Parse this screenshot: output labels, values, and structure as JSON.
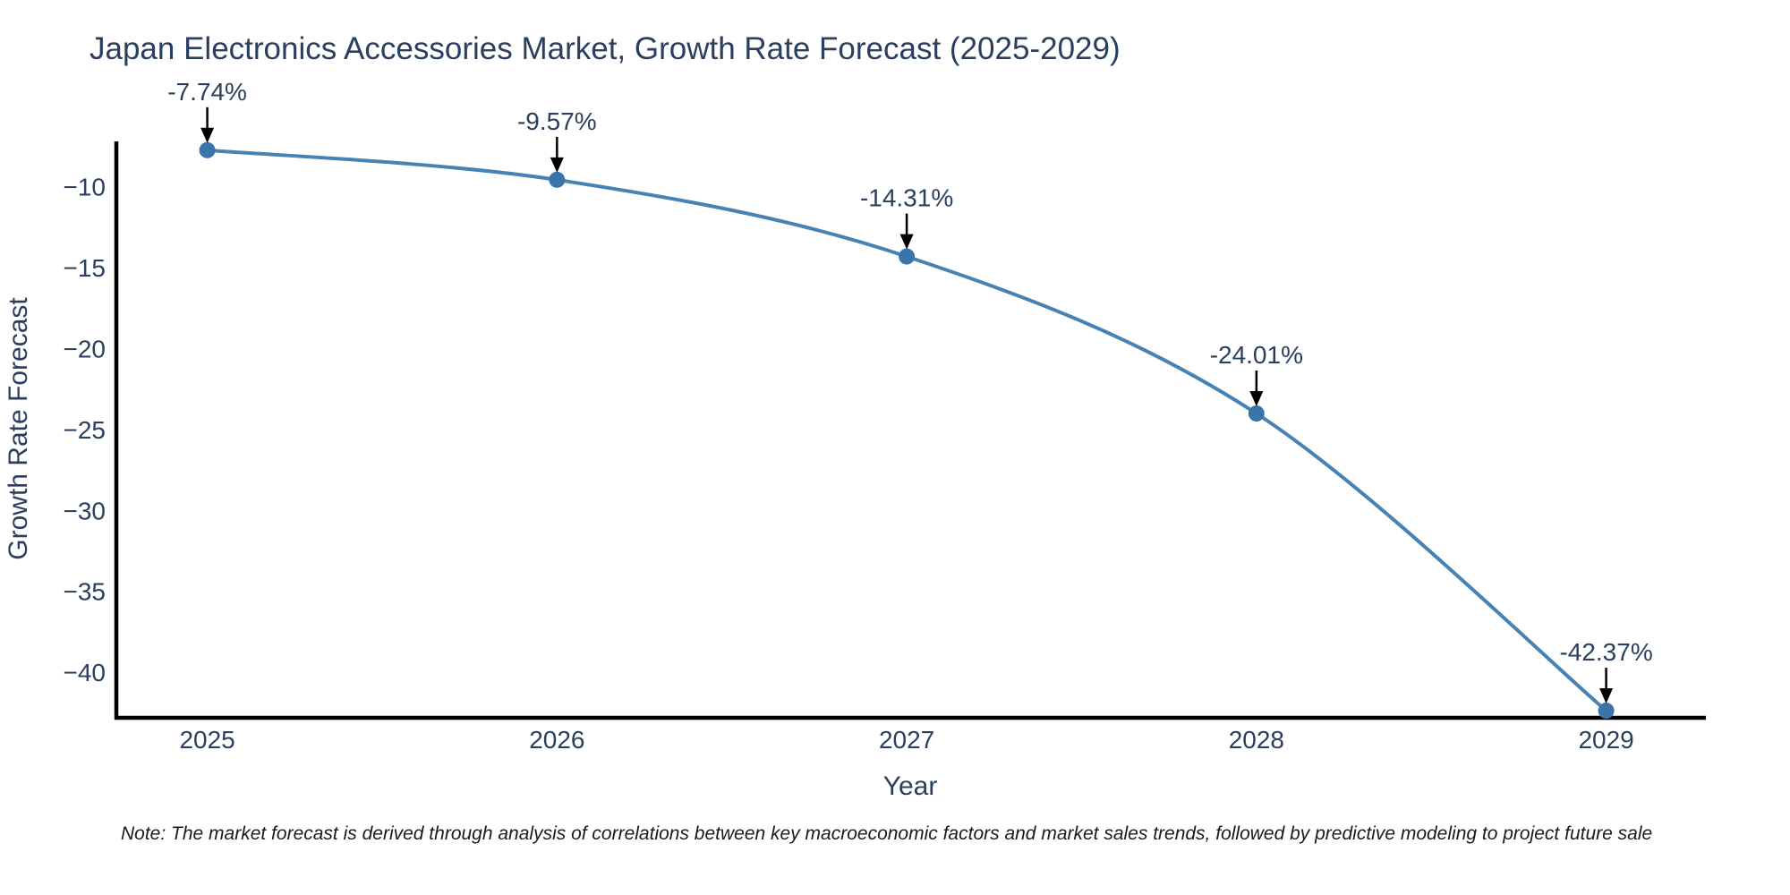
{
  "chart_data": {
    "type": "line",
    "title": "Japan Electronics Accessories Market, Growth Rate Forecast (2025-2029)",
    "xlabel": "Year",
    "ylabel": "Growth Rate Forecast",
    "categories": [
      2025,
      2026,
      2027,
      2028,
      2029
    ],
    "values": [
      -7.74,
      -9.57,
      -14.31,
      -24.01,
      -42.37
    ],
    "point_labels": [
      "-7.74%",
      "-9.57%",
      "-14.31%",
      "-24.01%",
      "-42.37%"
    ],
    "x_tick_labels": [
      "2025",
      "2026",
      "2027",
      "2028",
      "2029"
    ],
    "y_ticks": [
      -10,
      -15,
      -20,
      -25,
      -30,
      -35,
      -40
    ],
    "y_tick_labels": [
      "−10",
      "−15",
      "−20",
      "−25",
      "−30",
      "−35",
      "−40"
    ],
    "x_range": [
      2024.74,
      2029.28
    ],
    "y_range": [
      -42.7,
      -7.2
    ],
    "grid": false,
    "legend": "none",
    "line_shape": "spline",
    "colors": {
      "line": "#4682b4",
      "marker": "#3a74a9",
      "axis": "#000000",
      "text": "#2a3f5f",
      "annotation_text": "#2a3f5f",
      "annotation_arrow": "#000000",
      "background": "#ffffff"
    }
  },
  "note": {
    "text": "Note: The market forecast is derived through analysis of correlations between key macroeconomic factors and market sales trends, followed by predictive modeling to project future sale"
  }
}
